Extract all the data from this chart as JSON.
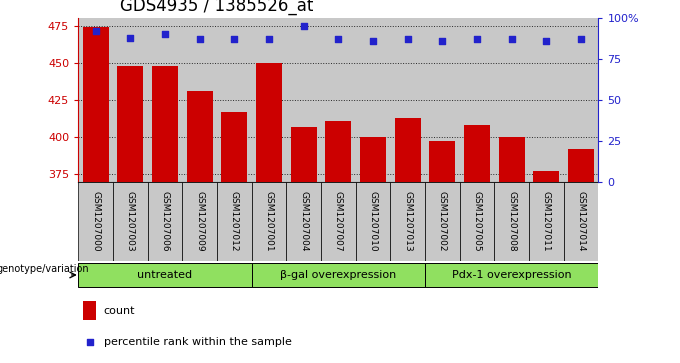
{
  "title": "GDS4935 / 1385526_at",
  "samples": [
    "GSM1207000",
    "GSM1207003",
    "GSM1207006",
    "GSM1207009",
    "GSM1207012",
    "GSM1207001",
    "GSM1207004",
    "GSM1207007",
    "GSM1207010",
    "GSM1207013",
    "GSM1207002",
    "GSM1207005",
    "GSM1207008",
    "GSM1207011",
    "GSM1207014"
  ],
  "counts": [
    474,
    448,
    448,
    431,
    417,
    450,
    407,
    411,
    400,
    413,
    397,
    408,
    400,
    377,
    392
  ],
  "percentile": [
    92,
    88,
    90,
    87,
    87,
    87,
    95,
    87,
    86,
    87,
    86,
    87,
    87,
    86,
    87
  ],
  "groups": [
    {
      "label": "untreated",
      "start": 0,
      "end": 5
    },
    {
      "label": "β-gal overexpression",
      "start": 5,
      "end": 10
    },
    {
      "label": "Pdx-1 overexpression",
      "start": 10,
      "end": 15
    }
  ],
  "ylim_left": [
    370,
    480
  ],
  "ylim_right": [
    0,
    100
  ],
  "yticks_left": [
    375,
    400,
    425,
    450,
    475
  ],
  "yticks_right": [
    0,
    25,
    50,
    75,
    100
  ],
  "bar_color": "#cc0000",
  "dot_color": "#2222cc",
  "group_bg_color": "#90e060",
  "sample_bg_color": "#c8c8c8",
  "legend_count_label": "count",
  "legend_pct_label": "percentile rank within the sample",
  "genotype_label": "genotype/variation",
  "title_fontsize": 12,
  "tick_fontsize": 8,
  "label_fontsize": 8,
  "sample_fontsize": 6.5
}
